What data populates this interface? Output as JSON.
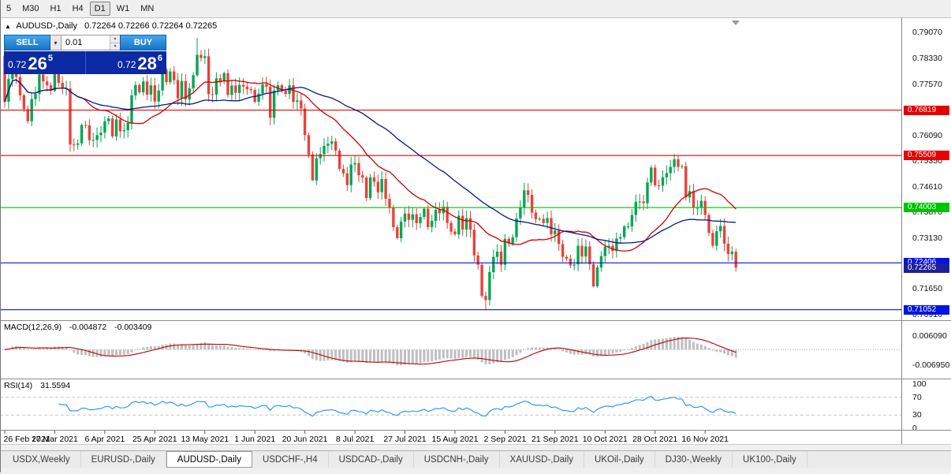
{
  "toolbar": {
    "timeframes": [
      "5",
      "M30",
      "H1",
      "H4",
      "D1",
      "W1",
      "MN"
    ],
    "active": "D1"
  },
  "chart": {
    "symbol_title": "AUDUSD-,Daily",
    "ohlc": "0.72264 0.72266 0.72264 0.72265"
  },
  "icons": {
    "collapse": "▲",
    "dropdown": "▾",
    "spin_up": "▲",
    "spin_down": "▼"
  },
  "trade": {
    "sell_label": "SELL",
    "buy_label": "BUY",
    "volume": "0.01",
    "sell_big": "0.72",
    "sell_pips": "26",
    "sell_sup": "5",
    "buy_big": "0.72",
    "buy_pips": "28",
    "buy_sup": "6"
  },
  "price_axis": {
    "labels": [
      "0.79070",
      "0.78330",
      "0.77570",
      "0.76090",
      "0.75350",
      "0.74610",
      "0.73870",
      "0.73130",
      "0.71650",
      "0.70910"
    ]
  },
  "levels": [
    {
      "price": 0.76819,
      "label": "0.76819",
      "color": "#e60000"
    },
    {
      "price": 0.75509,
      "label": "0.75509",
      "color": "#e60000"
    },
    {
      "price": 0.74003,
      "label": "0.74003",
      "color": "#00c400"
    },
    {
      "price": 0.72406,
      "label": "0.72406",
      "color": "#0014e6"
    },
    {
      "price": 0.71052,
      "label": "0.71052",
      "color": "#0014e6"
    }
  ],
  "bid": {
    "price": 0.72265,
    "label": "0.72265",
    "color": "#1f1f96"
  },
  "macd": {
    "title": "MACD(12,26,9)",
    "value_main": "-0.004872",
    "value_signal": "-0.003409",
    "axis_max": "0.006090",
    "axis_min": "-0.006950"
  },
  "rsi": {
    "title": "RSI(14)",
    "value": "31.5594",
    "axis": [
      "100",
      "70",
      "30",
      "0"
    ],
    "level_lines": [
      70,
      30
    ]
  },
  "date_axis": [
    "26 Feb 2021",
    "17 Mar 2021",
    "6 Apr 2021",
    "25 Apr 2021",
    "13 May 2021",
    "1 Jun 2021",
    "20 Jun 2021",
    "8 Jul 2021",
    "27 Jul 2021",
    "15 Aug 2021",
    "2 Sep 2021",
    "21 Sep 2021",
    "10 Oct 2021",
    "28 Oct 2021",
    "16 Nov 2021"
  ],
  "tabs": {
    "labels": [
      "USDX,Weekly",
      "EURUSD-,Daily",
      "AUDUSD-,Daily",
      "USDCHF-,H4",
      "USDCAD-,Daily",
      "USDCNH-,Daily",
      "XAUUSD-,Daily",
      "UKOil-,Daily",
      "DJ30-,Weekly",
      "UK100-,Daily"
    ],
    "active_index": 2
  },
  "colors": {
    "candle_up": "#00a651",
    "candle_down": "#e8423a",
    "ma_fast": "#cc0000",
    "ma_slow": "#001a8c",
    "macd_hist": "#bfbfbf",
    "macd_signal": "#c00000",
    "rsi": "#1e90ff",
    "trade_button": "#1e8fe1",
    "quote_panel_bg": "#0c2aa4"
  },
  "chart_data": {
    "type": "candlestick",
    "symbol": "AUDUSD-",
    "timeframe": "Daily",
    "title": "AUDUSD-,Daily",
    "x_range": [
      "26 Feb 2021",
      "19 Nov 2021"
    ],
    "price_range_hint": [
      0.7075,
      0.7948
    ],
    "first_open": 0.784,
    "closes": [
      0.7706,
      0.7772,
      0.7823,
      0.7778,
      0.7725,
      0.7685,
      0.765,
      0.7714,
      0.7729,
      0.7785,
      0.7765,
      0.7754,
      0.7738,
      0.7795,
      0.7761,
      0.7745,
      0.7745,
      0.7583,
      0.7582,
      0.7586,
      0.7639,
      0.7638,
      0.7595,
      0.7596,
      0.761,
      0.7617,
      0.765,
      0.7658,
      0.7606,
      0.7655,
      0.7621,
      0.7624,
      0.7645,
      0.7725,
      0.7755,
      0.7734,
      0.7765,
      0.7727,
      0.7754,
      0.7707,
      0.7739,
      0.7799,
      0.7763,
      0.7794,
      0.7769,
      0.7716,
      0.7766,
      0.7713,
      0.7745,
      0.7783,
      0.7842,
      0.7833,
      0.7838,
      0.7728,
      0.7727,
      0.7774,
      0.7765,
      0.7789,
      0.7726,
      0.7753,
      0.7732,
      0.7755,
      0.775,
      0.7743,
      0.774,
      0.7706,
      0.773,
      0.7757,
      0.775,
      0.766,
      0.7739,
      0.7754,
      0.7738,
      0.7729,
      0.7754,
      0.7706,
      0.771,
      0.7687,
      0.761,
      0.7554,
      0.7479,
      0.7543,
      0.7555,
      0.7579,
      0.7585,
      0.7592,
      0.7565,
      0.7512,
      0.7499,
      0.7465,
      0.7525,
      0.7529,
      0.7494,
      0.7487,
      0.7428,
      0.7488,
      0.7475,
      0.7445,
      0.7483,
      0.7426,
      0.74,
      0.7344,
      0.7312,
      0.736,
      0.7383,
      0.7365,
      0.7381,
      0.7355,
      0.7373,
      0.7397,
      0.7344,
      0.7362,
      0.7394,
      0.7384,
      0.7403,
      0.7356,
      0.7331,
      0.7323,
      0.7377,
      0.7337,
      0.737,
      0.7336,
      0.7262,
      0.7235,
      0.7145,
      0.7133,
      0.7214,
      0.7258,
      0.7273,
      0.7235,
      0.731,
      0.7296,
      0.7315,
      0.7369,
      0.7401,
      0.745,
      0.7437,
      0.7386,
      0.7367,
      0.7368,
      0.7356,
      0.737,
      0.7323,
      0.7334,
      0.7295,
      0.7258,
      0.7253,
      0.7233,
      0.7236,
      0.729,
      0.7259,
      0.7288,
      0.7237,
      0.7173,
      0.7227,
      0.726,
      0.7287,
      0.729,
      0.7275,
      0.7311,
      0.7315,
      0.7346,
      0.7346,
      0.7379,
      0.7417,
      0.7418,
      0.7413,
      0.7473,
      0.7516,
      0.7465,
      0.7464,
      0.7488,
      0.75,
      0.7518,
      0.754,
      0.7518,
      0.752,
      0.743,
      0.7448,
      0.74,
      0.74,
      0.742,
      0.7379,
      0.7327,
      0.729,
      0.7332,
      0.7347,
      0.7296,
      0.7266,
      0.7273,
      0.7227
    ],
    "high_overrides": {
      "50": 0.7891,
      "174": 0.7555
    },
    "low_overrides": {
      "17": 0.7562,
      "80": 0.7478,
      "125": 0.7106,
      "153": 0.717
    },
    "indicators": {
      "ma_fast_period": 20,
      "ma_slow_period": 45,
      "macd_params": "12,26,9",
      "rsi_period": 14
    }
  }
}
